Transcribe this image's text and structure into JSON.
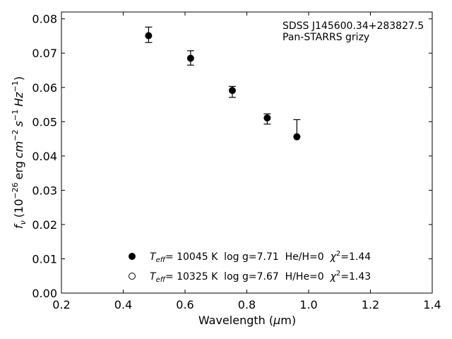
{
  "chart_data": {
    "type": "scatter",
    "x_range": [
      0.2,
      1.4
    ],
    "y_range": [
      0.0,
      0.082
    ],
    "x_ticks": [
      "0.2",
      "0.4",
      "0.6",
      "0.8",
      "1.0",
      "1.2",
      "1.4"
    ],
    "y_ticks": [
      "0.00",
      "0.01",
      "0.02",
      "0.03",
      "0.04",
      "0.05",
      "0.06",
      "0.07",
      "0.08"
    ],
    "xlabel_parts": {
      "main": "Wavelength (",
      "mu": "μ",
      "unit": "m)"
    },
    "ylabel_parts": {
      "f": "f",
      "nu": "ν",
      "open": "(10",
      "exp1": "−26",
      "erg": "erg",
      "cm": "cm",
      "exp2": "−2",
      "s": "s",
      "exp3": "−1",
      "hz": "Hz",
      "exp4": "−1",
      "close": ")"
    },
    "annotation": {
      "line1": "SDSS J145600.34+283827.5",
      "line2": "Pan-STARRS grizy"
    },
    "series": [
      {
        "marker": "filled",
        "points": [
          {
            "x": 0.482,
            "y": 0.0751,
            "err_lo": 0.002,
            "err_hi": 0.0025
          },
          {
            "x": 0.618,
            "y": 0.0685,
            "err_lo": 0.002,
            "err_hi": 0.0022
          },
          {
            "x": 0.753,
            "y": 0.0591,
            "err_lo": 0.002,
            "err_hi": 0.0012
          },
          {
            "x": 0.866,
            "y": 0.0511,
            "err_lo": 0.0018,
            "err_hi": 0.0012
          },
          {
            "x": 0.962,
            "y": 0.0456,
            "err_lo": 0.0,
            "err_hi": 0.005
          }
        ]
      }
    ],
    "legend": [
      {
        "marker": "filled",
        "t": "T",
        "eff": "eff",
        "text": "= 10045 K  log g=7.71  He/H=0  ",
        "chi": "χ",
        "sq": "2",
        "val": "=1.44"
      },
      {
        "marker": "open",
        "t": "T",
        "eff": "eff",
        "text": "= 10325 K  log g=7.67  H/He=0  ",
        "chi": "χ",
        "sq": "2",
        "val": "=1.43"
      }
    ]
  }
}
